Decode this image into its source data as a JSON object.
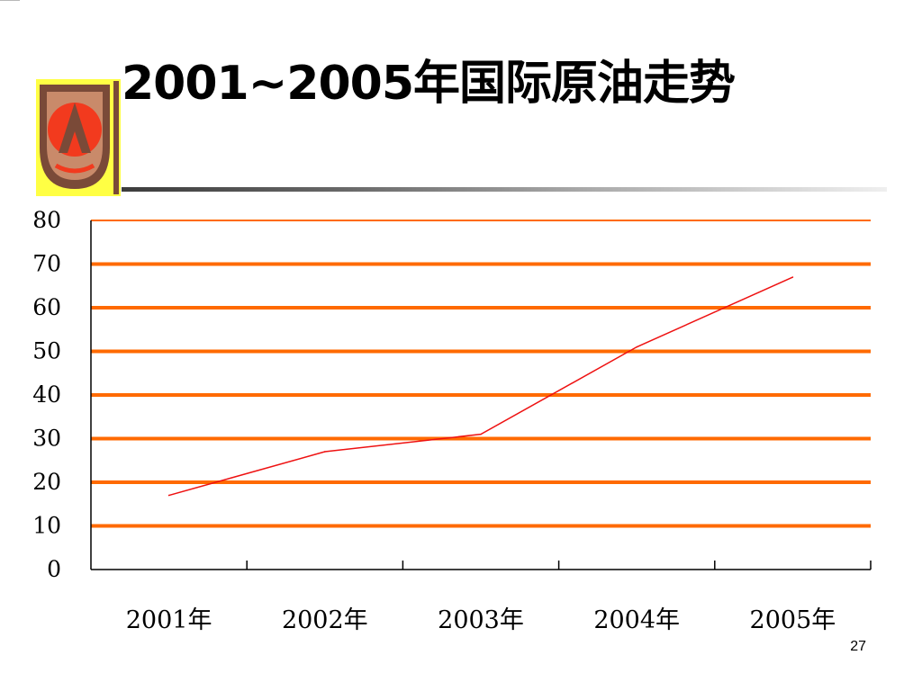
{
  "slide": {
    "title": "2001~2005年国际原油走势",
    "page_number": "27"
  },
  "colors": {
    "gridline": "#ff6a00",
    "series_line": "#ee1111",
    "logo_background": "#ffff44",
    "logo_red": "#f23a1e",
    "logo_brown": "#7a4a38"
  },
  "logo": {
    "icon": "emblem-logo"
  },
  "chart_data": {
    "type": "line",
    "title": "",
    "xlabel": "",
    "ylabel": "",
    "categories": [
      "2001年",
      "2002年",
      "2003年",
      "2004年",
      "2005年"
    ],
    "y_ticks": [
      "0",
      "10",
      "20",
      "30",
      "40",
      "50",
      "60",
      "70",
      "80"
    ],
    "ylim": [
      0,
      80
    ],
    "grid": "horizontal",
    "legend": "none",
    "series": [
      {
        "values": [
          17,
          27,
          31,
          51,
          67
        ]
      }
    ]
  }
}
